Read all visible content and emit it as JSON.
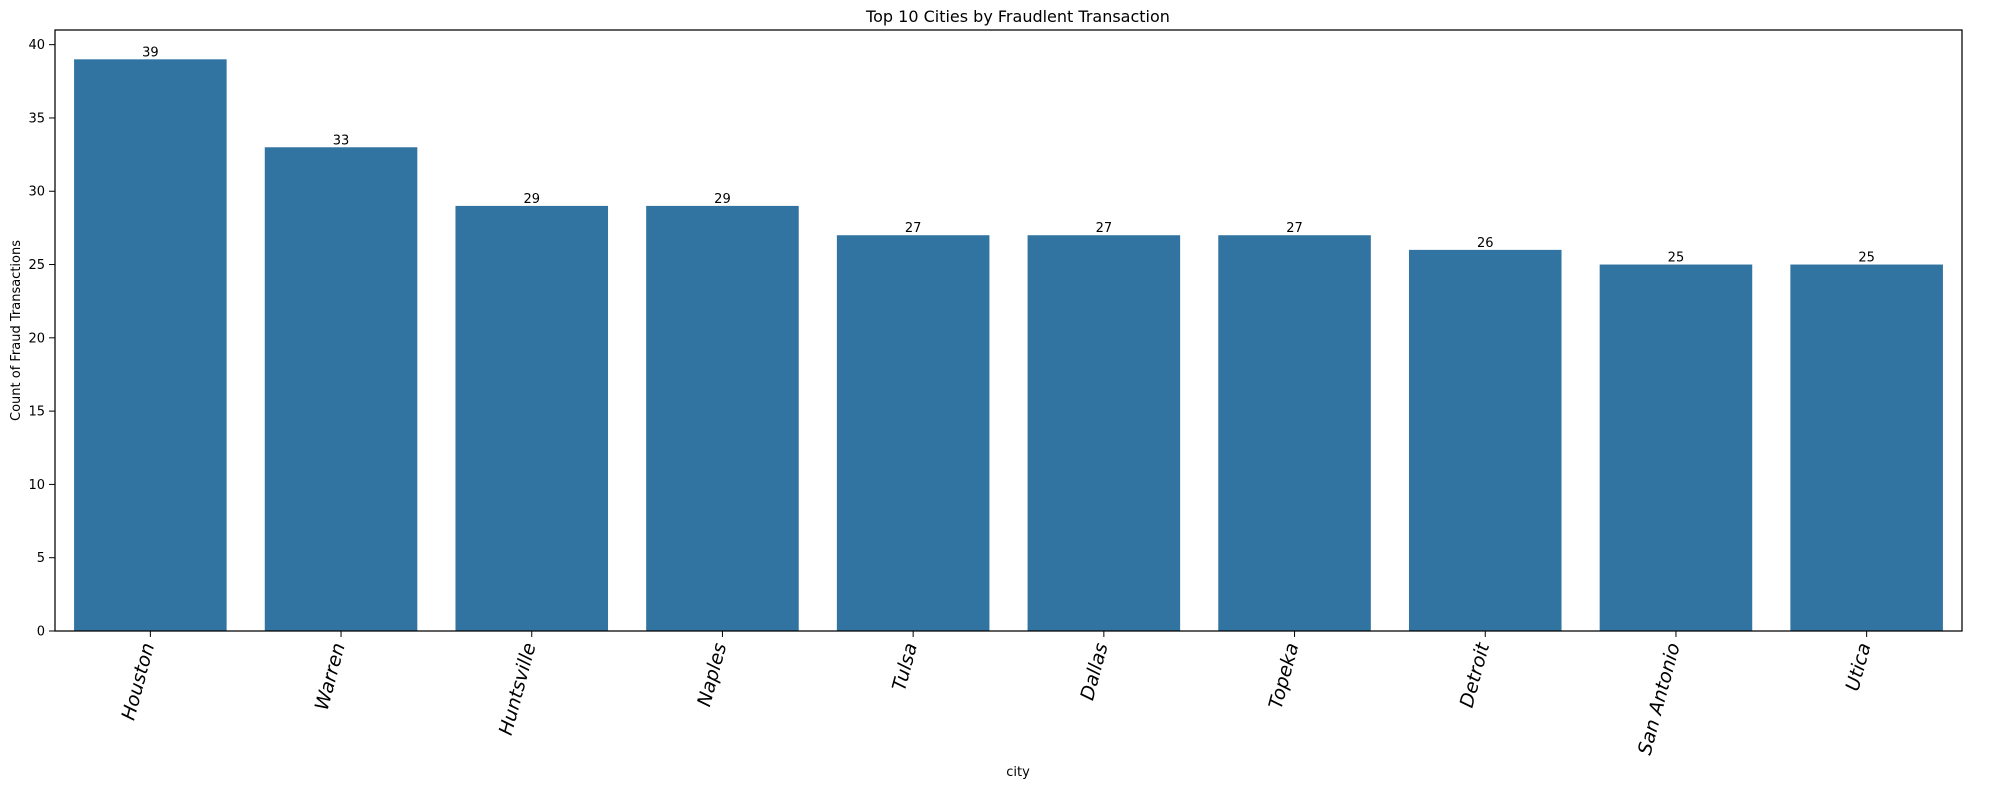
{
  "chart_data": {
    "type": "bar",
    "title": "Top 10 Cities by Fraudlent Transaction",
    "xlabel": "city",
    "ylabel": "Count of Fraud Transactions",
    "categories": [
      "Houston",
      "Warren",
      "Huntsville",
      "Naples",
      "Tulsa",
      "Dallas",
      "Topeka",
      "Detroit",
      "San Antonio",
      "Utica"
    ],
    "values": [
      39,
      33,
      29,
      29,
      27,
      27,
      27,
      26,
      25,
      25
    ],
    "ylim": [
      0,
      41
    ],
    "yticks": [
      0,
      5,
      10,
      15,
      20,
      25,
      30,
      35,
      40
    ],
    "bar_color": "#3274a1",
    "grid": false,
    "data_labels": true
  }
}
